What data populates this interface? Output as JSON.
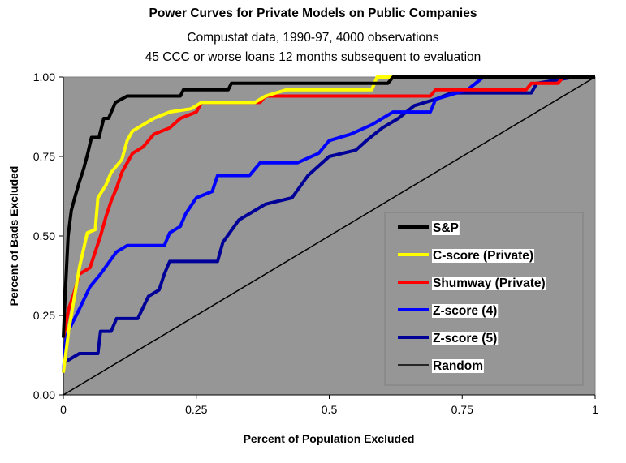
{
  "chart_data": {
    "type": "line",
    "title": "Power Curves for Private Models on Public Companies",
    "subtitle": [
      "Compustat data, 1990-97, 4000 observations",
      "45 CCC or worse loans 12 months subsequent to evaluation"
    ],
    "xlabel": "Percent of Population Excluded",
    "ylabel": "Percent of Bads Excluded",
    "xlim": [
      0,
      1
    ],
    "ylim": [
      0,
      1
    ],
    "xticks": [
      "0",
      "0.25",
      "0.5",
      "0.75",
      "1"
    ],
    "yticks": [
      "0.00",
      "0.25",
      "0.50",
      "0.75",
      "1.00"
    ],
    "plot_background": "#969696",
    "grid": false,
    "legend_position": "right",
    "series": [
      {
        "name": "S&P",
        "color": "#000000",
        "width": 4,
        "points": [
          [
            0,
            0.18
          ],
          [
            0.003,
            0.3
          ],
          [
            0.009,
            0.5
          ],
          [
            0.015,
            0.58
          ],
          [
            0.023,
            0.63
          ],
          [
            0.03,
            0.67
          ],
          [
            0.038,
            0.71
          ],
          [
            0.046,
            0.76
          ],
          [
            0.053,
            0.81
          ],
          [
            0.067,
            0.81
          ],
          [
            0.076,
            0.87
          ],
          [
            0.085,
            0.87
          ],
          [
            0.098,
            0.92
          ],
          [
            0.12,
            0.94
          ],
          [
            0.22,
            0.94
          ],
          [
            0.226,
            0.96
          ],
          [
            0.31,
            0.96
          ],
          [
            0.316,
            0.98
          ],
          [
            0.61,
            0.98
          ],
          [
            0.62,
            1.0
          ],
          [
            1,
            1
          ]
        ]
      },
      {
        "name": "C-score (Private)",
        "color": "#ffff00",
        "width": 4,
        "points": [
          [
            0,
            0.07
          ],
          [
            0.01,
            0.2
          ],
          [
            0.02,
            0.3
          ],
          [
            0.03,
            0.4
          ],
          [
            0.045,
            0.51
          ],
          [
            0.06,
            0.52
          ],
          [
            0.065,
            0.62
          ],
          [
            0.08,
            0.66
          ],
          [
            0.09,
            0.7
          ],
          [
            0.11,
            0.74
          ],
          [
            0.12,
            0.8
          ],
          [
            0.13,
            0.83
          ],
          [
            0.15,
            0.85
          ],
          [
            0.17,
            0.87
          ],
          [
            0.2,
            0.89
          ],
          [
            0.24,
            0.9
          ],
          [
            0.26,
            0.92
          ],
          [
            0.36,
            0.92
          ],
          [
            0.38,
            0.94
          ],
          [
            0.42,
            0.96
          ],
          [
            0.58,
            0.96
          ],
          [
            0.59,
            1.0
          ],
          [
            1,
            1
          ]
        ]
      },
      {
        "name": "Shumway (Private)",
        "color": "#ff0000",
        "width": 4,
        "points": [
          [
            0,
            0.18
          ],
          [
            0.01,
            0.27
          ],
          [
            0.02,
            0.32
          ],
          [
            0.03,
            0.38
          ],
          [
            0.05,
            0.4
          ],
          [
            0.07,
            0.5
          ],
          [
            0.08,
            0.56
          ],
          [
            0.09,
            0.61
          ],
          [
            0.1,
            0.65
          ],
          [
            0.11,
            0.7
          ],
          [
            0.13,
            0.76
          ],
          [
            0.15,
            0.78
          ],
          [
            0.17,
            0.82
          ],
          [
            0.2,
            0.84
          ],
          [
            0.22,
            0.87
          ],
          [
            0.25,
            0.89
          ],
          [
            0.26,
            0.92
          ],
          [
            0.37,
            0.92
          ],
          [
            0.38,
            0.94
          ],
          [
            0.69,
            0.94
          ],
          [
            0.7,
            0.96
          ],
          [
            0.87,
            0.96
          ],
          [
            0.88,
            0.98
          ],
          [
            0.93,
            0.98
          ],
          [
            0.94,
            1.0
          ],
          [
            1,
            1
          ]
        ]
      },
      {
        "name": "Z-score (4)",
        "color": "#0000ff",
        "width": 4,
        "points": [
          [
            0,
            0.07
          ],
          [
            0.005,
            0.18
          ],
          [
            0.015,
            0.22
          ],
          [
            0.03,
            0.27
          ],
          [
            0.05,
            0.34
          ],
          [
            0.07,
            0.38
          ],
          [
            0.1,
            0.45
          ],
          [
            0.12,
            0.47
          ],
          [
            0.19,
            0.47
          ],
          [
            0.2,
            0.51
          ],
          [
            0.22,
            0.53
          ],
          [
            0.23,
            0.57
          ],
          [
            0.25,
            0.62
          ],
          [
            0.28,
            0.64
          ],
          [
            0.29,
            0.69
          ],
          [
            0.35,
            0.69
          ],
          [
            0.37,
            0.73
          ],
          [
            0.44,
            0.73
          ],
          [
            0.48,
            0.76
          ],
          [
            0.5,
            0.8
          ],
          [
            0.54,
            0.82
          ],
          [
            0.58,
            0.85
          ],
          [
            0.62,
            0.89
          ],
          [
            0.69,
            0.89
          ],
          [
            0.7,
            0.93
          ],
          [
            0.76,
            0.96
          ],
          [
            0.79,
            1.0
          ],
          [
            1,
            1
          ]
        ]
      },
      {
        "name": "Z-score (5)",
        "color": "#000099",
        "width": 4,
        "points": [
          [
            0,
            0.1
          ],
          [
            0.01,
            0.11
          ],
          [
            0.03,
            0.13
          ],
          [
            0.065,
            0.13
          ],
          [
            0.07,
            0.2
          ],
          [
            0.09,
            0.2
          ],
          [
            0.1,
            0.24
          ],
          [
            0.14,
            0.24
          ],
          [
            0.16,
            0.31
          ],
          [
            0.18,
            0.33
          ],
          [
            0.19,
            0.38
          ],
          [
            0.2,
            0.42
          ],
          [
            0.29,
            0.42
          ],
          [
            0.3,
            0.48
          ],
          [
            0.33,
            0.55
          ],
          [
            0.36,
            0.58
          ],
          [
            0.38,
            0.6
          ],
          [
            0.43,
            0.62
          ],
          [
            0.46,
            0.69
          ],
          [
            0.5,
            0.75
          ],
          [
            0.55,
            0.77
          ],
          [
            0.57,
            0.8
          ],
          [
            0.6,
            0.84
          ],
          [
            0.63,
            0.87
          ],
          [
            0.66,
            0.91
          ],
          [
            0.7,
            0.93
          ],
          [
            0.73,
            0.95
          ],
          [
            0.88,
            0.95
          ],
          [
            0.89,
            0.98
          ],
          [
            0.96,
            1.0
          ],
          [
            1,
            1
          ]
        ]
      },
      {
        "name": "Random",
        "color": "#000000",
        "width": 1.5,
        "points": [
          [
            0,
            0
          ],
          [
            1,
            1
          ]
        ]
      }
    ]
  }
}
